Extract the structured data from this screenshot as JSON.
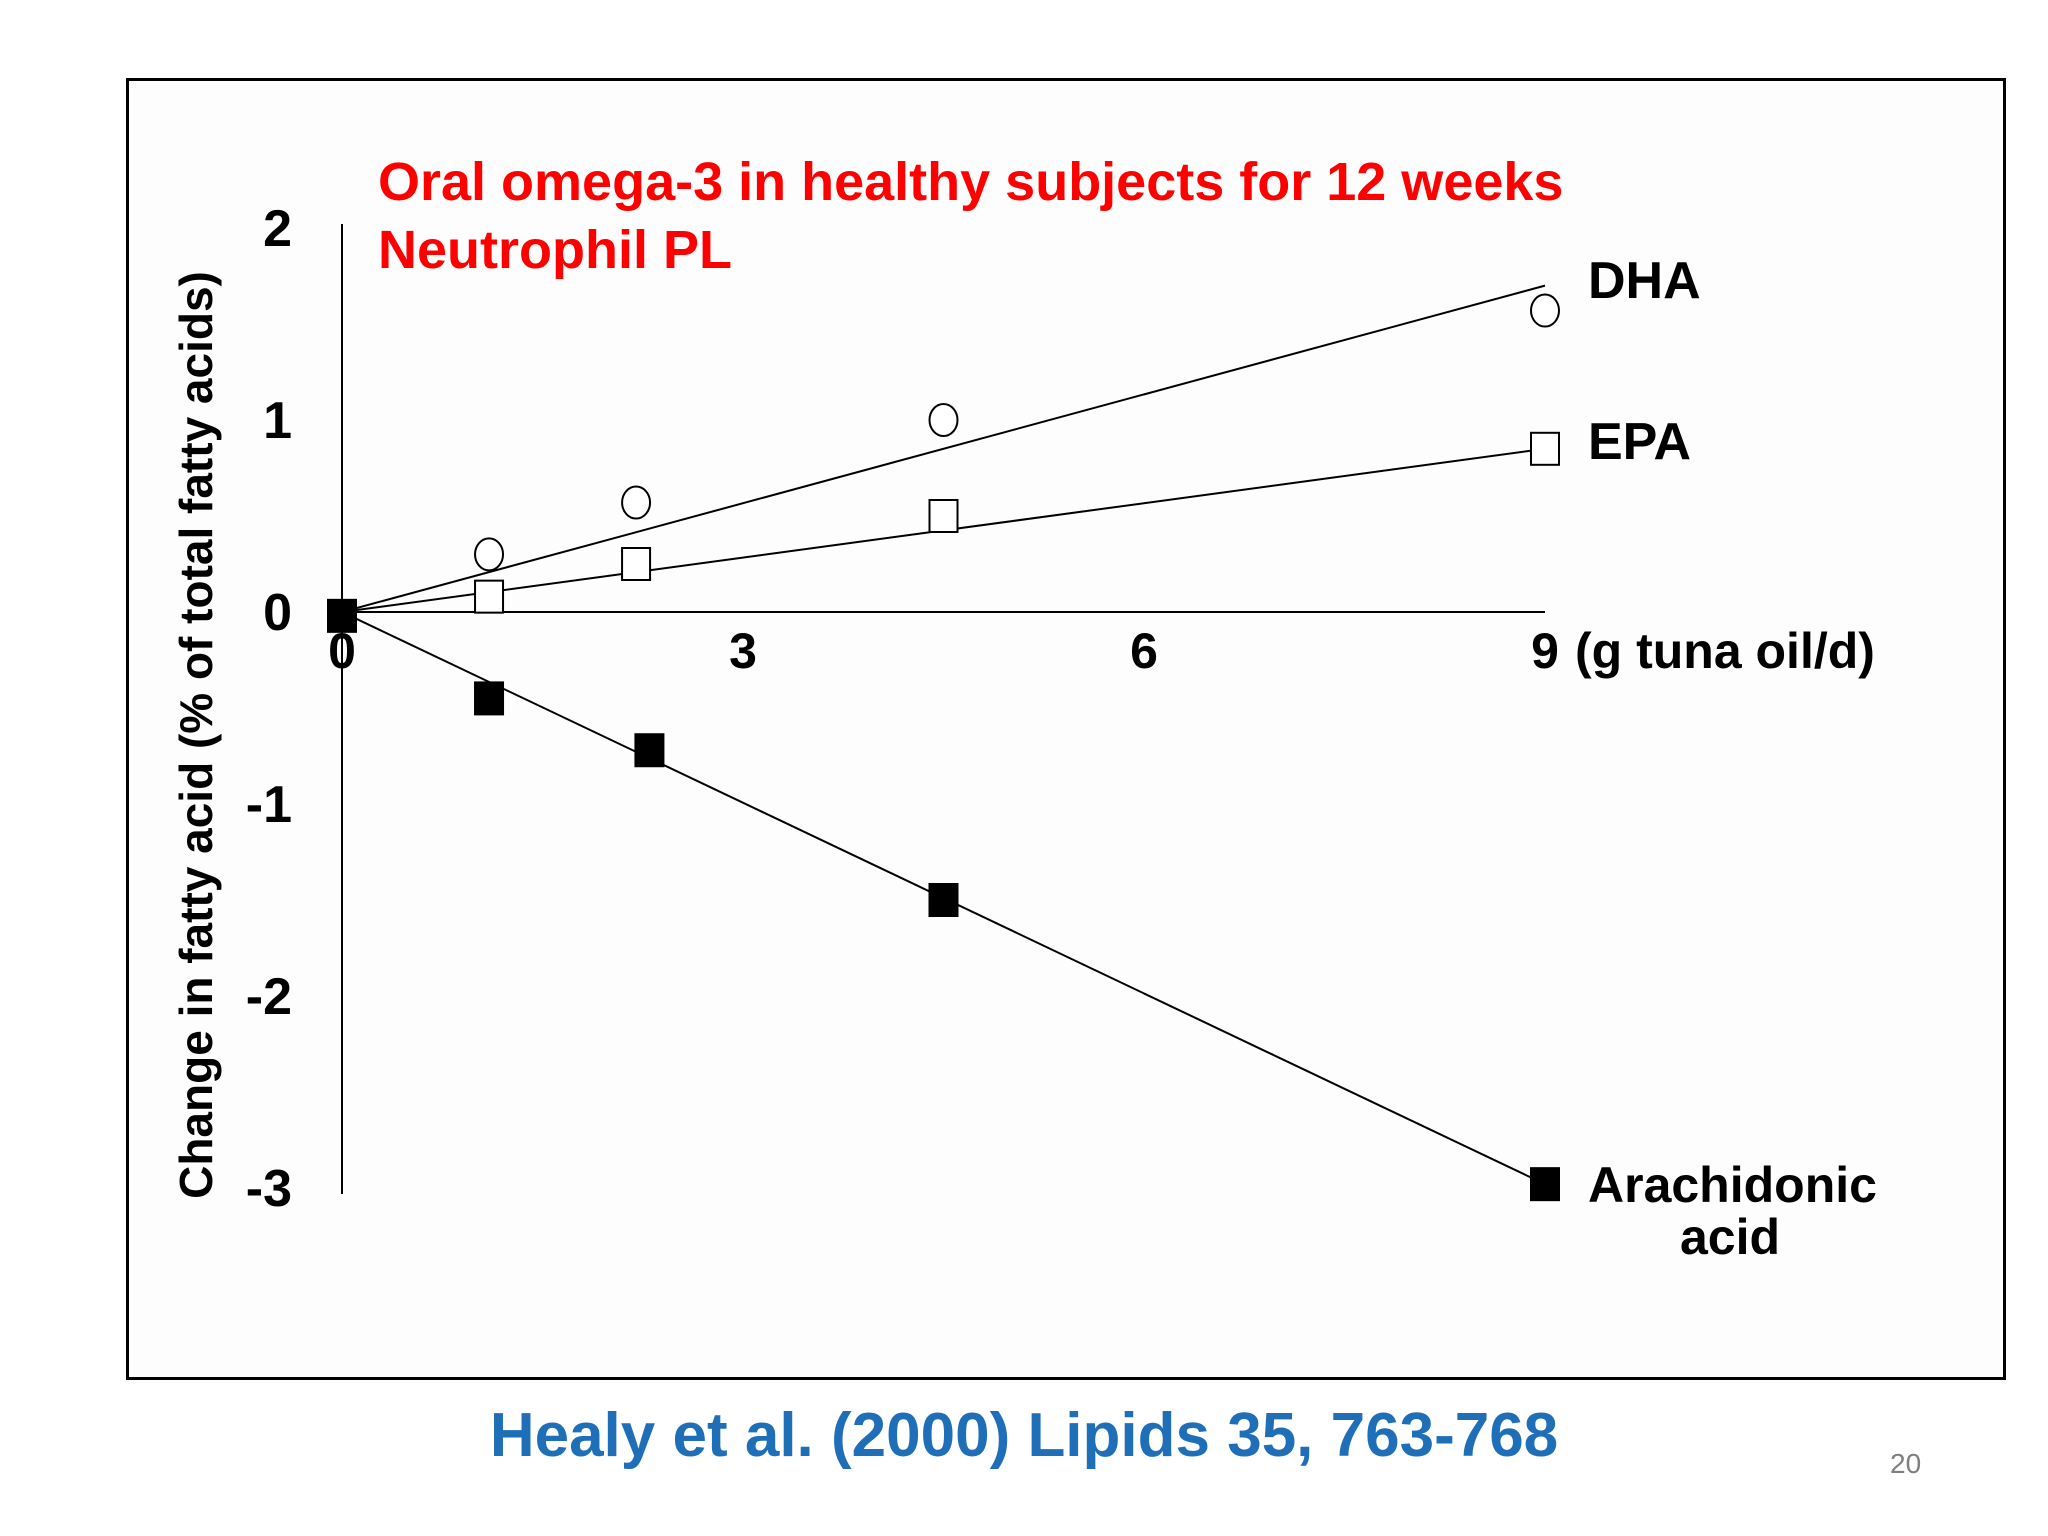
{
  "chart_data": {
    "type": "scatter",
    "title": [
      "Oral omega-3 in healthy subjects for 12 weeks",
      "Neutrophil PL"
    ],
    "xlabel": "(g tuna oil/d)",
    "ylabel": "Change in fatty acid (% of total fatty acids)",
    "xlim": [
      0,
      9
    ],
    "ylim": [
      -3,
      2
    ],
    "x_ticks": [
      "0",
      "3",
      "6",
      "9"
    ],
    "y_ticks": [
      "2",
      "1",
      "0",
      "-1",
      "-2",
      "-3"
    ],
    "series": [
      {
        "name": "DHA",
        "marker": "circle-open",
        "points": [
          [
            1.1,
            0.3
          ],
          [
            2.2,
            0.57
          ],
          [
            4.5,
            1.0
          ],
          [
            9.0,
            1.57
          ]
        ],
        "fit_line": [
          [
            0,
            0
          ],
          [
            9.0,
            1.7
          ]
        ]
      },
      {
        "name": "EPA",
        "marker": "square-open",
        "points": [
          [
            1.1,
            0.08
          ],
          [
            2.2,
            0.25
          ],
          [
            4.5,
            0.5
          ],
          [
            9.0,
            0.85
          ]
        ],
        "fit_line": [
          [
            0,
            0
          ],
          [
            9.0,
            0.85
          ]
        ]
      },
      {
        "name": "Arachidonic acid",
        "label_lines": [
          "Arachidonic",
          "acid"
        ],
        "marker": "square-filled",
        "points": [
          [
            0,
            -0.02
          ],
          [
            1.1,
            -0.45
          ],
          [
            2.3,
            -0.72
          ],
          [
            4.5,
            -1.5
          ],
          [
            9.0,
            -2.98
          ]
        ],
        "fit_line": [
          [
            0,
            0
          ],
          [
            9.0,
            -2.98
          ]
        ]
      }
    ]
  },
  "citation": "Healy et al. (2000) Lipids 35, 763-768",
  "page_number": "20",
  "colors": {
    "title": "#ff0000",
    "citation": "#1f6fb8",
    "axis": "#000000",
    "page_number": "#7f7f7f"
  }
}
